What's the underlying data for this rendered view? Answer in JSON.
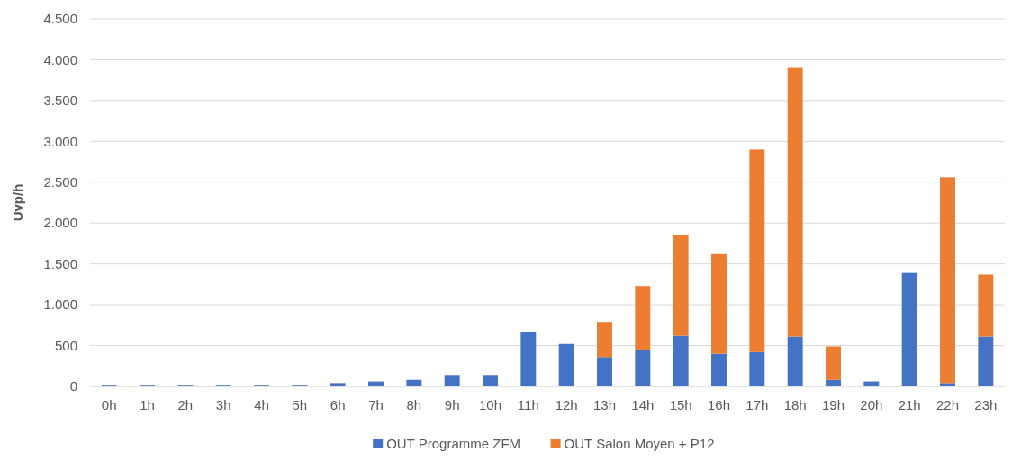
{
  "chart_data": {
    "type": "bar",
    "stacked": true,
    "ylabel": "Uvp/h",
    "categories": [
      "0h",
      "1h",
      "2h",
      "3h",
      "4h",
      "5h",
      "6h",
      "7h",
      "8h",
      "9h",
      "10h",
      "11h",
      "12h",
      "13h",
      "14h",
      "15h",
      "16h",
      "17h",
      "18h",
      "19h",
      "20h",
      "21h",
      "22h",
      "23h"
    ],
    "series": [
      {
        "name": "OUT Programme ZFM",
        "color": "#4472c4",
        "values": [
          20,
          20,
          20,
          20,
          20,
          20,
          40,
          60,
          80,
          140,
          140,
          670,
          520,
          360,
          440,
          620,
          400,
          420,
          610,
          80,
          60,
          1390,
          40,
          610
        ]
      },
      {
        "name": "OUT Salon Moyen + P12",
        "color": "#ed7d31",
        "values": [
          null,
          null,
          null,
          null,
          null,
          null,
          null,
          null,
          null,
          null,
          null,
          null,
          null,
          430,
          790,
          1230,
          1220,
          2480,
          3290,
          410,
          null,
          null,
          2520,
          760
        ]
      }
    ],
    "ylim": [
      0,
      4500
    ],
    "yticks": [
      {
        "value": 0,
        "label": "0"
      },
      {
        "value": 500,
        "label": "500"
      },
      {
        "value": 1000,
        "label": "1.000"
      },
      {
        "value": 1500,
        "label": "1.500"
      },
      {
        "value": 2000,
        "label": "2.000"
      },
      {
        "value": 2500,
        "label": "2.500"
      },
      {
        "value": 3000,
        "label": "3.000"
      },
      {
        "value": 3500,
        "label": "3.500"
      },
      {
        "value": 4000,
        "label": "4.000"
      },
      {
        "value": 4500,
        "label": "4.500"
      }
    ],
    "grid": "y",
    "legend": "bottom"
  }
}
